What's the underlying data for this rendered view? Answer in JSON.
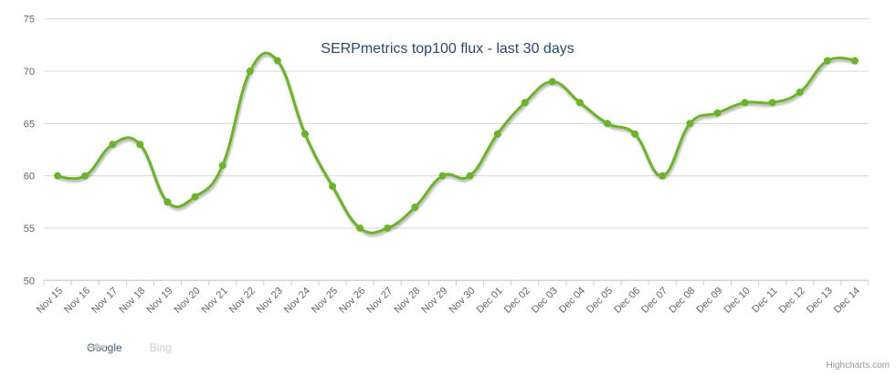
{
  "chart": {
    "title": "SERPmetrics top100 flux - last 30 days"
  },
  "credits": {
    "label": "Highcharts.com"
  },
  "colors": {
    "series_green": "#6CB22A",
    "hidden_gray": "#CCCCCC",
    "title_color": "#274B6D",
    "axis_label_color": "#666666",
    "grid_color": "#D8D8D8",
    "axis_line_color": "#C0D0E0",
    "credits_color": "#999999",
    "legend_text_color": "#3E576F",
    "background": "#FFFFFF"
  },
  "chart_data": {
    "type": "line",
    "subtype": "spline-with-markers",
    "title": "SERPmetrics top100 flux - last 30 days",
    "xlabel": "",
    "ylabel": "",
    "ylim": [
      50,
      75
    ],
    "yticks": [
      50,
      55,
      60,
      65,
      70,
      75
    ],
    "grid": true,
    "x_label_rotation": -45,
    "legend_position": "bottom-left",
    "categories": [
      "Nov 15",
      "Nov 16",
      "Nov 17",
      "Nov 18",
      "Nov 19",
      "Nov 20",
      "Nov 21",
      "Nov 22",
      "Nov 23",
      "Nov 24",
      "Nov 25",
      "Nov 26",
      "Nov 27",
      "Nov 28",
      "Nov 29",
      "Nov 30",
      "Dec 01",
      "Dec 02",
      "Dec 03",
      "Dec 04",
      "Dec 05",
      "Dec 06",
      "Dec 07",
      "Dec 08",
      "Dec 09",
      "Dec 10",
      "Dec 11",
      "Dec 12",
      "Dec 13",
      "Dec 14"
    ],
    "series": [
      {
        "name": "Google",
        "color": "#6CB22A",
        "visible": true,
        "values": [
          60,
          60,
          63,
          63,
          57.5,
          58,
          61,
          70,
          71,
          64,
          59,
          55,
          55,
          57,
          60,
          60,
          64,
          67,
          69,
          67,
          65,
          64,
          60,
          65,
          66,
          67,
          67,
          68,
          71,
          71
        ]
      },
      {
        "name": "Bing",
        "color": "#CCCCCC",
        "visible": false,
        "values": []
      }
    ]
  }
}
